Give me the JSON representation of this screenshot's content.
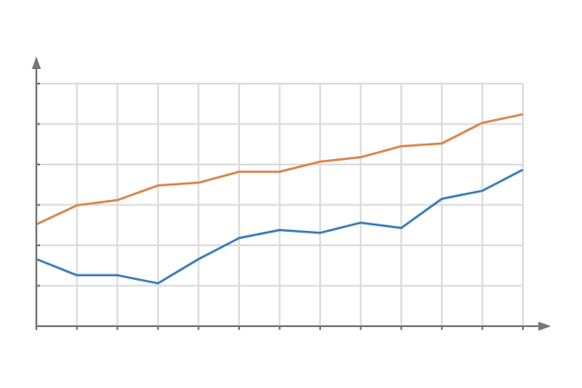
{
  "chart_data": {
    "type": "line",
    "x": [
      0,
      1,
      2,
      3,
      4,
      5,
      6,
      7,
      8,
      9,
      10,
      11,
      12
    ],
    "xlim": [
      0,
      12
    ],
    "xticks": [
      0,
      1,
      2,
      3,
      4,
      5,
      6,
      7,
      8,
      9,
      10,
      11,
      12
    ],
    "ylim": [
      0,
      6
    ],
    "yticks": [
      0,
      1,
      2,
      3,
      4,
      5,
      6
    ],
    "grid": true,
    "series": [
      {
        "color": "#3a7db8",
        "values": [
          1.66,
          1.26,
          1.26,
          1.06,
          1.66,
          2.18,
          2.38,
          2.31,
          2.56,
          2.43,
          3.15,
          3.35,
          3.87
        ]
      },
      {
        "color": "#d9864a",
        "values": [
          2.52,
          2.99,
          3.12,
          3.48,
          3.55,
          3.82,
          3.82,
          4.07,
          4.18,
          4.45,
          4.52,
          5.03,
          5.24
        ]
      }
    ]
  }
}
